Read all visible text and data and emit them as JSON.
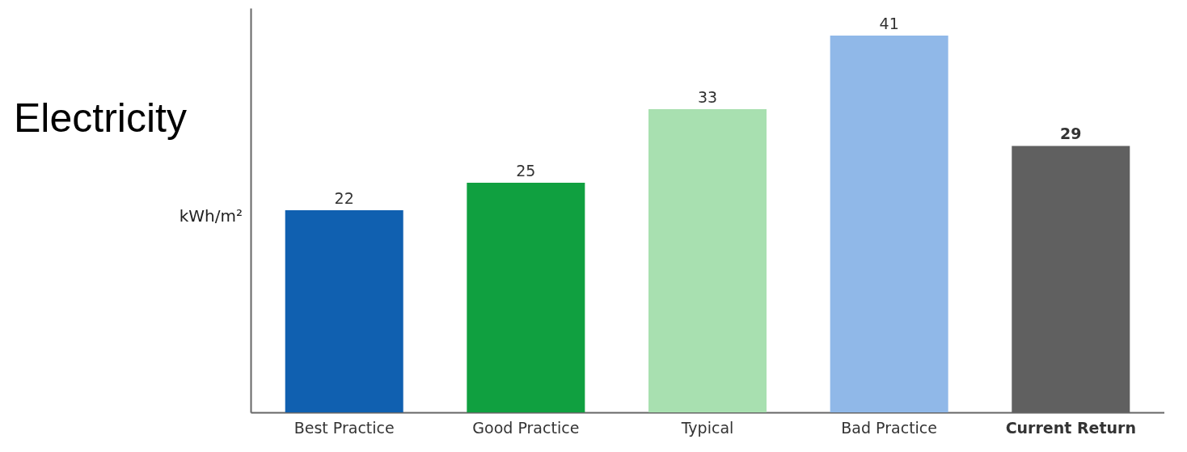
{
  "chart_data": {
    "type": "bar",
    "title": "Electricity",
    "ylabel": "kWh/m²",
    "categories": [
      "Best Practice",
      "Good Practice",
      "Typical",
      "Bad Practice",
      "Current Return"
    ],
    "values": [
      22,
      25,
      33,
      41,
      29
    ],
    "colors": [
      "#1060b0",
      "#10a040",
      "#a8e0b0",
      "#90b8e8",
      "#606060"
    ],
    "ylim": [
      0,
      44
    ],
    "data_labels": true,
    "grid": false,
    "tick_labels": "x"
  }
}
